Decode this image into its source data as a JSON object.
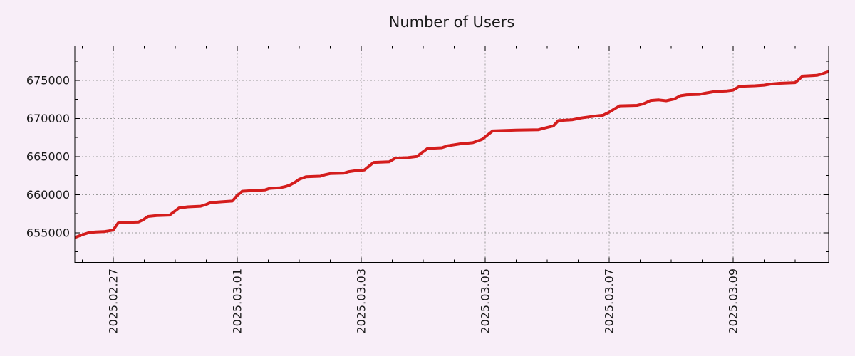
{
  "chart_data": {
    "type": "line",
    "title": "Number of Users",
    "xlabel": "",
    "ylabel": "",
    "legend": "none",
    "grid": "dotted gray lines at major ticks, mirrored inward ticks on all four borders",
    "x_unit": "days since 2025.02.26 00:00",
    "x_domain": [
      0.38,
      12.54
    ],
    "y_domain": [
      651120,
      679530
    ],
    "x_ticks": [
      {
        "t": 1,
        "label": "2025.02.27"
      },
      {
        "t": 3,
        "label": "2025.03.01"
      },
      {
        "t": 5,
        "label": "2025.03.03"
      },
      {
        "t": 7,
        "label": "2025.03.05"
      },
      {
        "t": 9,
        "label": "2025.03.07"
      },
      {
        "t": 11,
        "label": "2025.03.09"
      }
    ],
    "x_minor_step": 0.5,
    "y_ticks": [
      {
        "v": 655000,
        "label": "655000"
      },
      {
        "v": 660000,
        "label": "660000"
      },
      {
        "v": 665000,
        "label": "665000"
      },
      {
        "v": 670000,
        "label": "670000"
      },
      {
        "v": 675000,
        "label": "675000"
      }
    ],
    "y_minor_step": 2500,
    "series": [
      {
        "name": "users",
        "color": "#d41d1d",
        "points": [
          [
            0.38,
            654380
          ],
          [
            0.45,
            654600
          ],
          [
            0.52,
            654800
          ],
          [
            0.58,
            654950
          ],
          [
            0.62,
            655050
          ],
          [
            0.72,
            655110
          ],
          [
            0.85,
            655160
          ],
          [
            0.93,
            655260
          ],
          [
            1.0,
            655360
          ],
          [
            1.04,
            655850
          ],
          [
            1.08,
            656300
          ],
          [
            1.2,
            656360
          ],
          [
            1.41,
            656430
          ],
          [
            1.48,
            656700
          ],
          [
            1.56,
            657150
          ],
          [
            1.7,
            657260
          ],
          [
            1.91,
            657330
          ],
          [
            1.98,
            657760
          ],
          [
            2.06,
            658260
          ],
          [
            2.2,
            658410
          ],
          [
            2.41,
            658490
          ],
          [
            2.5,
            658730
          ],
          [
            2.57,
            658960
          ],
          [
            2.75,
            659070
          ],
          [
            2.92,
            659170
          ],
          [
            3.0,
            659900
          ],
          [
            3.08,
            660460
          ],
          [
            3.3,
            660570
          ],
          [
            3.45,
            660630
          ],
          [
            3.52,
            660830
          ],
          [
            3.69,
            660910
          ],
          [
            3.78,
            661070
          ],
          [
            3.85,
            661270
          ],
          [
            3.93,
            661630
          ],
          [
            4.0,
            662030
          ],
          [
            4.11,
            662360
          ],
          [
            4.34,
            662430
          ],
          [
            4.42,
            662630
          ],
          [
            4.5,
            662770
          ],
          [
            4.72,
            662830
          ],
          [
            4.8,
            663030
          ],
          [
            4.9,
            663140
          ],
          [
            5.05,
            663240
          ],
          [
            5.12,
            663710
          ],
          [
            5.2,
            664240
          ],
          [
            5.45,
            664320
          ],
          [
            5.55,
            664800
          ],
          [
            5.75,
            664870
          ],
          [
            5.9,
            665020
          ],
          [
            5.97,
            665470
          ],
          [
            6.07,
            666070
          ],
          [
            6.3,
            666170
          ],
          [
            6.4,
            666430
          ],
          [
            6.6,
            666680
          ],
          [
            6.8,
            666830
          ],
          [
            6.95,
            667270
          ],
          [
            7.05,
            667910
          ],
          [
            7.12,
            668370
          ],
          [
            7.5,
            668470
          ],
          [
            7.86,
            668530
          ],
          [
            8.0,
            668830
          ],
          [
            8.1,
            669030
          ],
          [
            8.18,
            669730
          ],
          [
            8.4,
            669830
          ],
          [
            8.55,
            670070
          ],
          [
            8.75,
            670300
          ],
          [
            8.9,
            670430
          ],
          [
            9.0,
            670830
          ],
          [
            9.1,
            671330
          ],
          [
            9.17,
            671670
          ],
          [
            9.45,
            671730
          ],
          [
            9.55,
            671930
          ],
          [
            9.67,
            672370
          ],
          [
            9.8,
            672450
          ],
          [
            9.92,
            672330
          ],
          [
            10.05,
            672570
          ],
          [
            10.15,
            673000
          ],
          [
            10.25,
            673120
          ],
          [
            10.45,
            673170
          ],
          [
            10.55,
            673320
          ],
          [
            10.7,
            673540
          ],
          [
            10.9,
            673620
          ],
          [
            11.0,
            673730
          ],
          [
            11.1,
            674220
          ],
          [
            11.35,
            674300
          ],
          [
            11.5,
            674380
          ],
          [
            11.6,
            674520
          ],
          [
            11.75,
            674620
          ],
          [
            12.0,
            674710
          ],
          [
            12.06,
            675120
          ],
          [
            12.12,
            675570
          ],
          [
            12.35,
            675670
          ],
          [
            12.43,
            675840
          ],
          [
            12.48,
            676000
          ],
          [
            12.54,
            676160
          ]
        ]
      }
    ]
  },
  "colors": {
    "background": "#f8eef8",
    "plot_background": "#f8eef8",
    "line": "#d41d1d",
    "grid": "#9a9a9a",
    "axis": "#000000",
    "text": "#1a1a1a"
  }
}
